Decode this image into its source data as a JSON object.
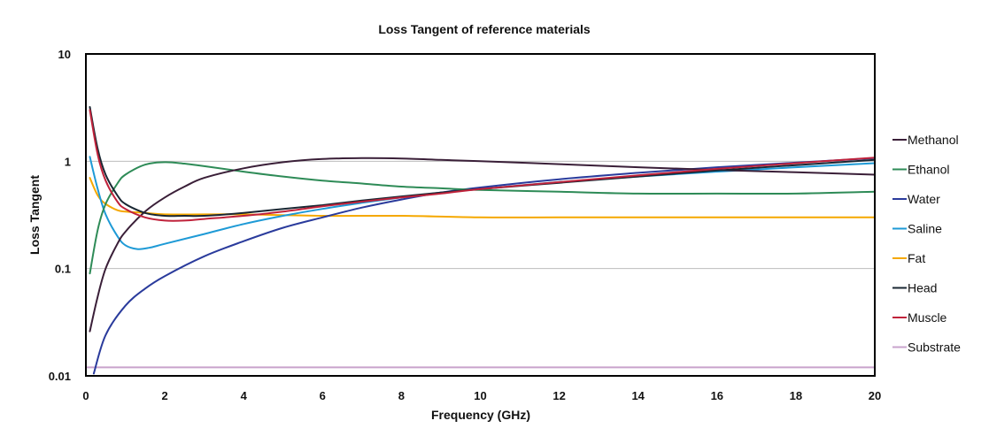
{
  "chart_data": {
    "type": "line",
    "title": "Loss Tangent of reference materials",
    "xlabel": "Frequency (GHz)",
    "ylabel": "Loss Tangent",
    "xlim": [
      0,
      20
    ],
    "ylim": [
      0.01,
      10
    ],
    "y_scale": "log",
    "x_ticks": [
      0,
      2,
      4,
      6,
      8,
      10,
      12,
      14,
      16,
      18,
      20
    ],
    "x_tick_labels": [
      "0",
      "2",
      "4",
      "6",
      "8",
      "10",
      "12",
      "14",
      "16",
      "18",
      "20"
    ],
    "y_ticks": [
      0.01,
      0.1,
      1,
      10
    ],
    "y_tick_labels": [
      "0.01",
      "0.1",
      "1",
      "10"
    ],
    "grid": "horizontal",
    "legend_position": "right",
    "series": [
      {
        "name": "Methanol",
        "color": "#3a1f38",
        "x": [
          0.1,
          0.3,
          0.5,
          0.8,
          1,
          1.5,
          2,
          2.5,
          3,
          4,
          5,
          6,
          7,
          8,
          9,
          10,
          12,
          14,
          16,
          18,
          20
        ],
        "y": [
          0.026,
          0.055,
          0.1,
          0.17,
          0.22,
          0.34,
          0.46,
          0.58,
          0.7,
          0.86,
          0.98,
          1.05,
          1.07,
          1.06,
          1.03,
          1.0,
          0.94,
          0.88,
          0.83,
          0.79,
          0.75
        ]
      },
      {
        "name": "Ethanol",
        "color": "#2e8b57",
        "x": [
          0.1,
          0.3,
          0.5,
          0.8,
          1,
          1.5,
          2,
          2.5,
          3,
          4,
          5,
          6,
          7,
          8,
          9,
          10,
          12,
          14,
          16,
          18,
          20
        ],
        "y": [
          0.09,
          0.23,
          0.4,
          0.62,
          0.75,
          0.93,
          0.98,
          0.95,
          0.9,
          0.8,
          0.72,
          0.66,
          0.62,
          0.58,
          0.56,
          0.54,
          0.52,
          0.5,
          0.5,
          0.5,
          0.52
        ]
      },
      {
        "name": "Water",
        "color": "#2a3b9c",
        "x": [
          0.2,
          0.5,
          1,
          1.5,
          2,
          3,
          4,
          5,
          6,
          7,
          8,
          9,
          10,
          12,
          14,
          16,
          18,
          20
        ],
        "y": [
          0.0105,
          0.024,
          0.045,
          0.065,
          0.085,
          0.13,
          0.18,
          0.24,
          0.3,
          0.37,
          0.44,
          0.51,
          0.57,
          0.68,
          0.78,
          0.88,
          0.97,
          1.07
        ]
      },
      {
        "name": "Saline",
        "color": "#1e9ad6",
        "x": [
          0.1,
          0.3,
          0.5,
          0.8,
          1,
          1.3,
          1.6,
          2,
          3,
          4,
          5,
          6,
          7,
          8,
          9,
          10,
          12,
          14,
          16,
          18,
          20
        ],
        "y": [
          1.1,
          0.55,
          0.32,
          0.2,
          0.165,
          0.152,
          0.156,
          0.17,
          0.21,
          0.26,
          0.31,
          0.36,
          0.41,
          0.46,
          0.51,
          0.55,
          0.64,
          0.72,
          0.8,
          0.88,
          0.96
        ]
      },
      {
        "name": "Fat",
        "color": "#f5a800",
        "x": [
          0.1,
          0.3,
          0.5,
          0.8,
          1,
          1.5,
          2,
          3,
          4,
          6,
          8,
          10,
          12,
          14,
          16,
          18,
          20
        ],
        "y": [
          0.7,
          0.48,
          0.4,
          0.35,
          0.34,
          0.33,
          0.32,
          0.32,
          0.32,
          0.31,
          0.31,
          0.3,
          0.3,
          0.3,
          0.3,
          0.3,
          0.3
        ]
      },
      {
        "name": "Head",
        "color": "#1a2733",
        "x": [
          0.1,
          0.3,
          0.5,
          0.8,
          1,
          1.5,
          2,
          2.5,
          3,
          4,
          5,
          6,
          7,
          8,
          9,
          10,
          12,
          14,
          16,
          18,
          20
        ],
        "y": [
          3.2,
          1.3,
          0.75,
          0.48,
          0.4,
          0.33,
          0.31,
          0.31,
          0.31,
          0.33,
          0.36,
          0.39,
          0.43,
          0.47,
          0.51,
          0.55,
          0.63,
          0.72,
          0.82,
          0.92,
          1.03
        ]
      },
      {
        "name": "Muscle",
        "color": "#c0223b",
        "x": [
          0.1,
          0.3,
          0.5,
          0.8,
          1,
          1.5,
          2,
          2.5,
          3,
          4,
          5,
          6,
          7,
          8,
          9,
          10,
          12,
          14,
          16,
          18,
          20
        ],
        "y": [
          3.0,
          1.15,
          0.66,
          0.42,
          0.36,
          0.3,
          0.28,
          0.28,
          0.29,
          0.31,
          0.34,
          0.38,
          0.42,
          0.46,
          0.5,
          0.55,
          0.64,
          0.74,
          0.85,
          0.96,
          1.08
        ]
      },
      {
        "name": "Substrate",
        "color": "#c9a3cc",
        "x": [
          0,
          20
        ],
        "y": [
          0.012,
          0.012
        ]
      }
    ]
  }
}
